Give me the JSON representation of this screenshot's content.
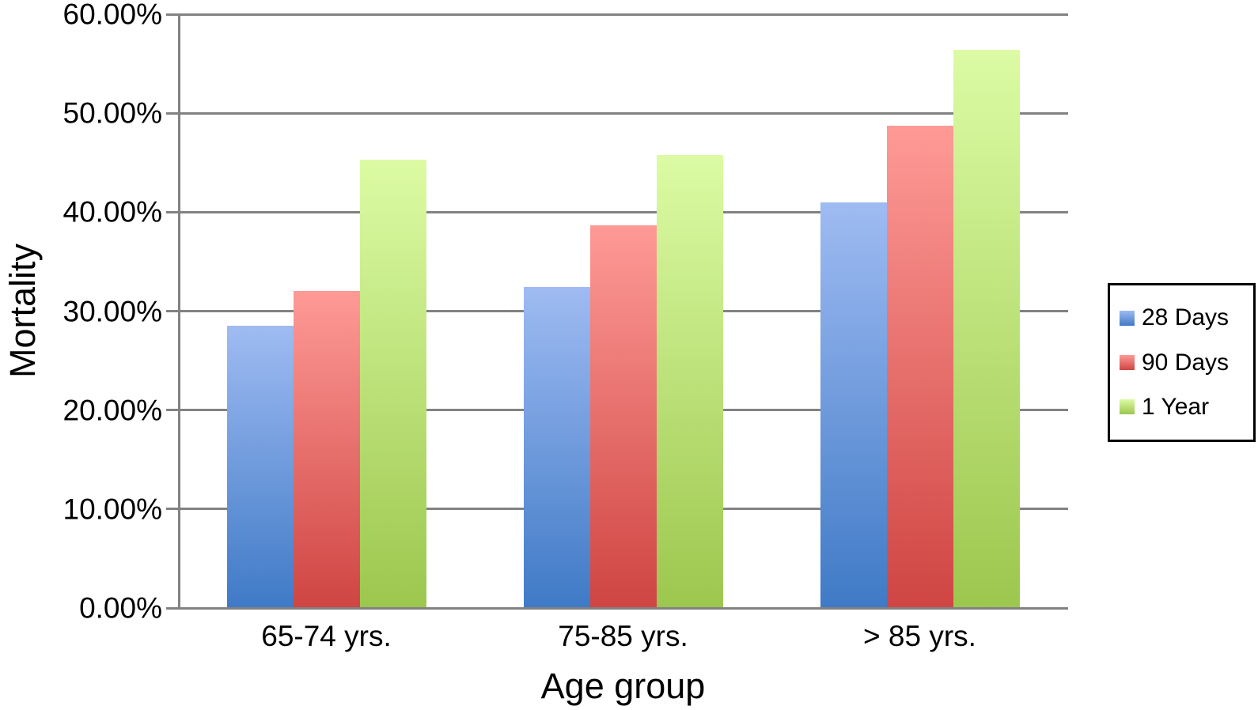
{
  "chart_data": {
    "type": "bar",
    "title": "",
    "xlabel": "Age group",
    "ylabel": "Mortality",
    "categories": [
      "65-74 yrs.",
      "75-85 yrs.",
      "> 85 yrs."
    ],
    "series": [
      {
        "name": "28 Days",
        "values": [
          28.5,
          32.4,
          41.0
        ],
        "color_top": "#9fbbf2",
        "color_bottom": "#3f7ac6"
      },
      {
        "name": "90 Days",
        "values": [
          32.0,
          38.7,
          48.7
        ],
        "color_top": "#fe9a96",
        "color_bottom": "#cf4543"
      },
      {
        "name": "1 Year",
        "values": [
          45.3,
          45.8,
          56.4
        ],
        "color_top": "#dcfba4",
        "color_bottom": "#9cc74e"
      }
    ],
    "ylim": [
      0,
      60
    ],
    "ytick_step": 10,
    "yticks": [
      "0.00%",
      "10.00%",
      "20.00%",
      "30.00%",
      "40.00%",
      "50.00%",
      "60.00%"
    ],
    "grid": true,
    "gridline_color": "#828282",
    "legend_position": "right",
    "legend_border_color": "#000000",
    "background_color": "#ffffff",
    "text_color": "#000000"
  }
}
